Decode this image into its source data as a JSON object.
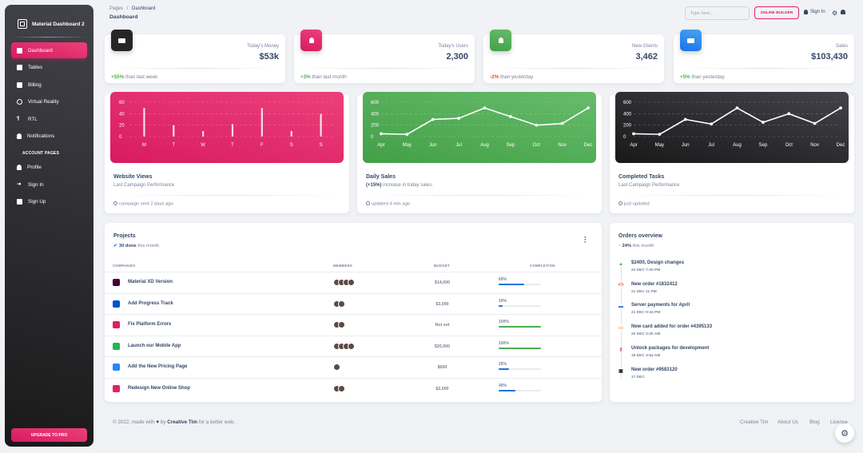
{
  "sidebar": {
    "brand": "Material Dashboard 2",
    "items": [
      {
        "label": "Dashboard"
      },
      {
        "label": "Tables"
      },
      {
        "label": "Billing"
      },
      {
        "label": "Virtual Reality"
      },
      {
        "label": "RTL"
      },
      {
        "label": "Notifications"
      }
    ],
    "section_title": "ACCOUNT PAGES",
    "account_items": [
      {
        "label": "Profile"
      },
      {
        "label": "Sign In"
      },
      {
        "label": "Sign Up"
      }
    ],
    "upgrade": "UPGRADE TO PRO"
  },
  "header": {
    "breadcrumb_root": "Pages",
    "breadcrumb_sep": "/",
    "breadcrumb_current": "Dashboard",
    "title": "Dashboard",
    "search_placeholder": "Type here...",
    "online_builder": "ONLINE BUILDER",
    "sign_in": "Sign In"
  },
  "stats": [
    {
      "label": "Today's Money",
      "value": "$53k",
      "change": "+55%",
      "change_text": " than last week",
      "color": "#191919"
    },
    {
      "label": "Today's Users",
      "value": "2,300",
      "change": "+3%",
      "change_text": " than last month",
      "color": "#e91e63"
    },
    {
      "label": "New Clients",
      "value": "3,462",
      "change": "-2%",
      "change_text": " than yesterday",
      "color": "#4caf50"
    },
    {
      "label": "Sales",
      "value": "$103,430",
      "change": "+5%",
      "change_text": " than yesterday",
      "color": "#1a73e8"
    }
  ],
  "charts": [
    {
      "title": "Website Views",
      "sub_bold": "",
      "sub": "Last Campaign Performance",
      "foot": "campaign sent 2 days ago"
    },
    {
      "title": "Daily Sales",
      "sub_bold": "(+15%)",
      "sub": " increase in today sales.",
      "foot": "updated 4 min ago"
    },
    {
      "title": "Completed Tasks",
      "sub_bold": "",
      "sub": "Last Campaign Performance",
      "foot": "just updated"
    }
  ],
  "chart_data": [
    {
      "type": "bar",
      "categories": [
        "M",
        "T",
        "W",
        "T",
        "F",
        "S",
        "S"
      ],
      "values": [
        50,
        20,
        10,
        22,
        50,
        10,
        40
      ],
      "yticks": [
        "0",
        "20",
        "40",
        "60"
      ],
      "ylim": [
        0,
        60
      ],
      "color": "#e91e63",
      "title": "Website Views"
    },
    {
      "type": "line",
      "categories": [
        "Apr",
        "May",
        "Jun",
        "Jul",
        "Aug",
        "Sep",
        "Oct",
        "Nov",
        "Dec"
      ],
      "values": [
        50,
        40,
        300,
        320,
        500,
        350,
        200,
        230,
        500
      ],
      "yticks": [
        "0",
        "200",
        "400",
        "600"
      ],
      "ylim": [
        0,
        600
      ],
      "color": "#4caf50",
      "title": "Daily Sales"
    },
    {
      "type": "line",
      "categories": [
        "Apr",
        "May",
        "Jun",
        "Jul",
        "Aug",
        "Sep",
        "Oct",
        "Nov",
        "Dec"
      ],
      "values": [
        50,
        40,
        300,
        220,
        500,
        250,
        400,
        230,
        500
      ],
      "yticks": [
        "0",
        "200",
        "400",
        "600"
      ],
      "ylim": [
        0,
        600
      ],
      "color": "#262626",
      "title": "Completed Tasks"
    }
  ],
  "projects": {
    "title": "Projects",
    "done_count": "30 done",
    "done_text": " this month",
    "columns": [
      "COMPANIES",
      "MEMBERS",
      "BUDGET",
      "COMPLETION"
    ],
    "rows": [
      {
        "name": "Material XD Version",
        "members": 4,
        "budget": "$14,000",
        "completion": "60%",
        "progress": 0.6,
        "logo_color": "#470137",
        "bar_color": "#1a73e8"
      },
      {
        "name": "Add Progress Track",
        "members": 2,
        "budget": "$3,000",
        "completion": "10%",
        "progress": 0.1,
        "logo_color": "#0052cc",
        "bar_color": "#1a73e8"
      },
      {
        "name": "Fix Platform Errors",
        "members": 2,
        "budget": "Not set",
        "completion": "100%",
        "progress": 1.0,
        "logo_color": "#e01e5a",
        "bar_color": "#4caf50"
      },
      {
        "name": "Launch our Mobile App",
        "members": 4,
        "budget": "$20,500",
        "completion": "100%",
        "progress": 1.0,
        "logo_color": "#1db954",
        "bar_color": "#4caf50"
      },
      {
        "name": "Add the New Pricing Page",
        "members": 1,
        "budget": "$500",
        "completion": "25%",
        "progress": 0.25,
        "logo_color": "#2684ff",
        "bar_color": "#1a73e8"
      },
      {
        "name": "Redesign New Online Shop",
        "members": 2,
        "budget": "$2,000",
        "completion": "40%",
        "progress": 0.4,
        "logo_color": "#e91e63",
        "bar_color": "#1a73e8"
      }
    ]
  },
  "orders": {
    "title": "Orders overview",
    "change": "24%",
    "change_text": " this month",
    "items": [
      {
        "name": "$2400, Design changes",
        "date": "22 DEC 7:20 PM",
        "icon": "bell-icon",
        "color": "#4caf50"
      },
      {
        "name": "New order #1832412",
        "date": "21 DEC 11 PM",
        "icon": "code-icon",
        "color": "#f44335"
      },
      {
        "name": "Server payments for April",
        "date": "21 DEC 9:34 PM",
        "icon": "cart-icon",
        "color": "#1a73e8"
      },
      {
        "name": "New card added for order #4395133",
        "date": "20 DEC 2:20 AM",
        "icon": "card-icon",
        "color": "#fb8c00"
      },
      {
        "name": "Unlock packages for development",
        "date": "18 DEC 4:54 AM",
        "icon": "key-icon",
        "color": "#e91e63"
      },
      {
        "name": "New order #9583120",
        "date": "17 DEC",
        "icon": "payments-icon",
        "color": "#262626"
      }
    ]
  },
  "footer": {
    "copyright": "© 2022, made with",
    "by": " by ",
    "author": "Creative Tim",
    "suffix": " for a better web.",
    "links": [
      "Creative Tim",
      "About Us",
      "Blog",
      "License"
    ]
  }
}
